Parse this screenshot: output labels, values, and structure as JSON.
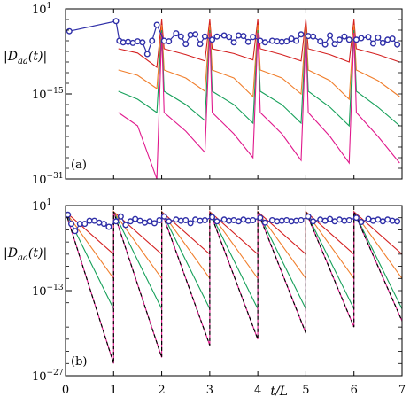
{
  "chart_data": [
    {
      "type": "line",
      "panel_label": "(a)",
      "ylabel": "|D_aa(t)|",
      "xlabel": "t/L",
      "yscale": "log",
      "ylim_exp": [
        -31,
        1
      ],
      "xlim": [
        0,
        7
      ],
      "x_ticks": [
        "0",
        "1",
        "2",
        "3",
        "4",
        "5",
        "6",
        "7"
      ],
      "y_ticks": [
        {
          "exp": 1,
          "base": "10",
          "sup": "1"
        },
        {
          "exp": -15,
          "base": "10",
          "sup": "−15"
        },
        {
          "exp": -31,
          "base": "10",
          "sup": "−31"
        }
      ],
      "markers": {
        "name": "blue-circles",
        "color": "#2f2fa8",
        "points": [
          [
            0.08,
            -3.2
          ],
          [
            1.05,
            -1.3
          ],
          [
            1.12,
            -5.0
          ],
          [
            1.2,
            -5.3
          ],
          [
            1.3,
            -5.2
          ],
          [
            1.4,
            -5.4
          ],
          [
            1.5,
            -5.1
          ],
          [
            1.6,
            -5.3
          ],
          [
            1.7,
            -7.5
          ],
          [
            1.8,
            -5.0
          ],
          [
            1.9,
            -2.0
          ],
          [
            2.05,
            -5.0
          ],
          [
            2.15,
            -5.1
          ],
          [
            2.3,
            -3.6
          ],
          [
            2.4,
            -4.2
          ],
          [
            2.5,
            -5.6
          ],
          [
            2.6,
            -3.9
          ],
          [
            2.7,
            -3.8
          ],
          [
            2.8,
            -5.6
          ],
          [
            2.9,
            -4.2
          ],
          [
            3.05,
            -4.8
          ],
          [
            3.15,
            -4.2
          ],
          [
            3.3,
            -4.0
          ],
          [
            3.4,
            -4.3
          ],
          [
            3.5,
            -5.3
          ],
          [
            3.6,
            -4.0
          ],
          [
            3.7,
            -4.1
          ],
          [
            3.8,
            -5.2
          ],
          [
            3.9,
            -4.3
          ],
          [
            4.05,
            -5.0
          ],
          [
            4.15,
            -5.3
          ],
          [
            4.3,
            -5.0
          ],
          [
            4.4,
            -5.1
          ],
          [
            4.5,
            -5.2
          ],
          [
            4.6,
            -5.1
          ],
          [
            4.7,
            -4.6
          ],
          [
            4.8,
            -5.0
          ],
          [
            4.9,
            -3.8
          ],
          [
            5.05,
            -4.1
          ],
          [
            5.15,
            -4.2
          ],
          [
            5.3,
            -5.1
          ],
          [
            5.4,
            -5.7
          ],
          [
            5.5,
            -4.0
          ],
          [
            5.6,
            -5.6
          ],
          [
            5.7,
            -4.8
          ],
          [
            5.8,
            -4.2
          ],
          [
            5.9,
            -4.8
          ],
          [
            6.05,
            -4.8
          ],
          [
            6.15,
            -4.5
          ],
          [
            6.3,
            -4.3
          ],
          [
            6.4,
            -5.5
          ],
          [
            6.5,
            -4.4
          ],
          [
            6.6,
            -5.4
          ],
          [
            6.7,
            -4.8
          ],
          [
            6.8,
            -4.6
          ],
          [
            6.9,
            -5.7
          ]
        ]
      },
      "series": [
        {
          "color": "#d42020",
          "x": [
            1.1,
            1.5,
            1.9,
            2.0,
            2.05,
            2.5,
            2.9,
            3.0,
            3.05,
            3.5,
            3.9,
            4.0,
            4.05,
            4.5,
            4.9,
            5.0,
            5.05,
            5.5,
            5.9,
            6.0,
            6.05,
            6.5,
            6.95
          ],
          "y": [
            -6.5,
            -7.3,
            -10.0,
            -1.0,
            -6.5,
            -7.6,
            -8.8,
            -1.0,
            -6.5,
            -7.4,
            -8.6,
            -1.0,
            -6.5,
            -7.6,
            -8.8,
            -1.0,
            -6.5,
            -7.6,
            -9.0,
            -1.0,
            -6.5,
            -7.6,
            -9.0
          ]
        },
        {
          "color": "#f07e2c",
          "x": [
            1.1,
            1.5,
            1.9,
            2.0,
            2.05,
            2.5,
            2.9,
            3.0,
            3.05,
            3.5,
            3.9,
            4.0,
            4.05,
            4.5,
            4.9,
            5.0,
            5.05,
            5.5,
            5.9,
            6.0,
            6.05,
            6.5,
            6.95
          ],
          "y": [
            -10.5,
            -11.5,
            -14.0,
            -2.0,
            -10.5,
            -12.0,
            -14.5,
            -2.0,
            -10.5,
            -12.0,
            -15.5,
            -2.0,
            -10.5,
            -12.0,
            -15.0,
            -2.0,
            -10.5,
            -12.5,
            -16.0,
            -2.0,
            -10.5,
            -12.5,
            -15.5
          ]
        },
        {
          "color": "#16a05a",
          "x": [
            1.1,
            1.5,
            1.9,
            2.0,
            2.05,
            2.5,
            2.9,
            3.0,
            3.05,
            3.5,
            3.9,
            4.0,
            4.05,
            4.5,
            4.9,
            5.0,
            5.05,
            5.5,
            5.9,
            6.0,
            6.05,
            6.5,
            6.95
          ],
          "y": [
            -14.5,
            -16.0,
            -18.5,
            -3.0,
            -14.5,
            -17.0,
            -20.0,
            -3.0,
            -14.5,
            -17.0,
            -20.5,
            -3.0,
            -14.5,
            -17.0,
            -20.5,
            -3.0,
            -14.5,
            -17.5,
            -21.0,
            -3.0,
            -14.5,
            -17.5,
            -21.0
          ]
        },
        {
          "color": "#e0188c",
          "x": [
            1.1,
            1.5,
            1.9,
            2.0,
            2.05,
            2.5,
            2.9,
            3.0,
            3.05,
            3.5,
            3.9,
            4.0,
            4.05,
            4.5,
            4.9,
            5.0,
            5.05,
            5.5,
            5.9,
            6.0,
            6.05,
            6.5,
            6.95
          ],
          "y": [
            -18.5,
            -21.0,
            -31.0,
            -3.5,
            -18.5,
            -22.0,
            -26.0,
            -3.5,
            -18.5,
            -22.5,
            -27.0,
            -3.5,
            -18.5,
            -22.5,
            -27.5,
            -3.5,
            -18.5,
            -23.0,
            -28.0,
            -3.5,
            -18.5,
            -23.0,
            -28.0
          ]
        }
      ]
    },
    {
      "type": "line",
      "panel_label": "(b)",
      "ylabel": "|D_aa(t)|",
      "xlabel": "t/L",
      "yscale": "log",
      "ylim_exp": [
        -27,
        1
      ],
      "xlim": [
        0,
        7
      ],
      "x_ticks": [
        "0",
        "1",
        "2",
        "3",
        "4",
        "5",
        "6",
        "7"
      ],
      "y_ticks": [
        {
          "exp": 1,
          "base": "10",
          "sup": "1"
        },
        {
          "exp": -13,
          "base": "10",
          "sup": "−13"
        },
        {
          "exp": -27,
          "base": "10",
          "sup": "−27"
        }
      ],
      "markers": {
        "name": "blue-circles",
        "color": "#2f2fa8",
        "points": [
          [
            0.05,
            -0.5
          ],
          [
            0.12,
            -2.0
          ],
          [
            0.2,
            -3.2
          ],
          [
            0.3,
            -2.0
          ],
          [
            0.4,
            -2.0
          ],
          [
            0.5,
            -1.5
          ],
          [
            0.6,
            -1.5
          ],
          [
            0.7,
            -1.8
          ],
          [
            0.8,
            -2.0
          ],
          [
            0.9,
            -2.5
          ],
          [
            1.05,
            -1.6
          ],
          [
            1.15,
            -0.8
          ],
          [
            1.25,
            -2.2
          ],
          [
            1.35,
            -1.6
          ],
          [
            1.45,
            -1.2
          ],
          [
            1.55,
            -1.5
          ],
          [
            1.65,
            -1.8
          ],
          [
            1.75,
            -1.6
          ],
          [
            1.85,
            -1.9
          ],
          [
            1.95,
            -1.4
          ],
          [
            2.05,
            -0.8
          ],
          [
            2.15,
            -1.6
          ],
          [
            2.3,
            -1.3
          ],
          [
            2.4,
            -1.5
          ],
          [
            2.5,
            -1.4
          ],
          [
            2.6,
            -1.9
          ],
          [
            2.7,
            -1.3
          ],
          [
            2.8,
            -1.5
          ],
          [
            2.9,
            -1.4
          ],
          [
            3.05,
            -0.9
          ],
          [
            3.15,
            -1.6
          ],
          [
            3.3,
            -1.3
          ],
          [
            3.4,
            -1.5
          ],
          [
            3.5,
            -1.4
          ],
          [
            3.6,
            -1.6
          ],
          [
            3.7,
            -1.3
          ],
          [
            3.8,
            -1.5
          ],
          [
            3.9,
            -1.4
          ],
          [
            4.05,
            -1.0
          ],
          [
            4.15,
            -1.8
          ],
          [
            4.3,
            -1.4
          ],
          [
            4.4,
            -1.6
          ],
          [
            4.5,
            -1.5
          ],
          [
            4.6,
            -1.4
          ],
          [
            4.7,
            -1.6
          ],
          [
            4.8,
            -1.5
          ],
          [
            4.9,
            -1.4
          ],
          [
            5.05,
            -0.8
          ],
          [
            5.15,
            -1.6
          ],
          [
            5.3,
            -1.3
          ],
          [
            5.4,
            -1.5
          ],
          [
            5.5,
            -1.2
          ],
          [
            5.6,
            -1.6
          ],
          [
            5.7,
            -1.3
          ],
          [
            5.8,
            -1.5
          ],
          [
            5.9,
            -1.4
          ],
          [
            6.05,
            -1.0
          ],
          [
            6.15,
            -1.7
          ],
          [
            6.3,
            -1.2
          ],
          [
            6.4,
            -1.5
          ],
          [
            6.5,
            -1.3
          ],
          [
            6.6,
            -1.6
          ],
          [
            6.7,
            -1.3
          ],
          [
            6.8,
            -1.5
          ],
          [
            6.9,
            -1.6
          ]
        ]
      },
      "series": [
        {
          "color": "#d42020",
          "x": [
            0.0,
            1.0,
            1.0,
            2.0,
            2.0,
            3.0,
            3.0,
            4.0,
            4.0,
            5.0,
            5.0,
            6.0,
            6.0,
            7.0
          ],
          "y": [
            0.0,
            -7.0,
            0.0,
            -7.0,
            0.0,
            -7.0,
            0.0,
            -7.0,
            0.0,
            -7.0,
            0.0,
            -7.0,
            0.0,
            -7.0
          ]
        },
        {
          "color": "#f07e2c",
          "x": [
            0.0,
            1.0,
            1.0,
            2.0,
            2.0,
            3.0,
            3.0,
            4.0,
            4.0,
            5.0,
            5.0,
            6.0,
            6.0,
            7.0
          ],
          "y": [
            0.0,
            -11.0,
            0.0,
            -11.0,
            0.0,
            -11.0,
            0.0,
            -11.0,
            0.0,
            -11.0,
            0.0,
            -11.0,
            0.0,
            -11.0
          ]
        },
        {
          "color": "#16a05a",
          "x": [
            0.0,
            1.0,
            1.0,
            2.0,
            2.0,
            3.0,
            3.0,
            4.0,
            4.0,
            5.0,
            5.0,
            6.0,
            6.0,
            7.0
          ],
          "y": [
            0.0,
            -16.0,
            0.0,
            -16.0,
            0.0,
            -16.0,
            0.0,
            -16.0,
            0.0,
            -16.0,
            0.0,
            -16.0,
            0.0,
            -16.0
          ]
        },
        {
          "color": "#e0188c",
          "x": [
            0.0,
            1.0,
            1.0,
            2.0,
            2.0,
            3.0,
            3.0,
            4.0,
            4.0,
            5.0,
            5.0,
            6.0,
            6.0,
            7.0
          ],
          "y": [
            0.0,
            -25.0,
            0.0,
            -24.0,
            0.0,
            -22.0,
            0.0,
            -21.0,
            0.0,
            -20.0,
            0.0,
            -19.0,
            0.0,
            -18.0
          ]
        },
        {
          "color": "#000000",
          "dashed": true,
          "x": [
            0.0,
            1.0,
            1.0,
            2.0,
            2.0,
            3.0,
            3.0,
            4.0,
            4.0,
            5.0,
            5.0,
            6.0,
            6.0,
            7.0
          ],
          "y": [
            0.0,
            -25.0,
            0.0,
            -24.0,
            0.0,
            -22.0,
            0.0,
            -21.0,
            0.0,
            -20.0,
            0.0,
            -19.0,
            0.0,
            -18.0
          ]
        }
      ]
    }
  ]
}
